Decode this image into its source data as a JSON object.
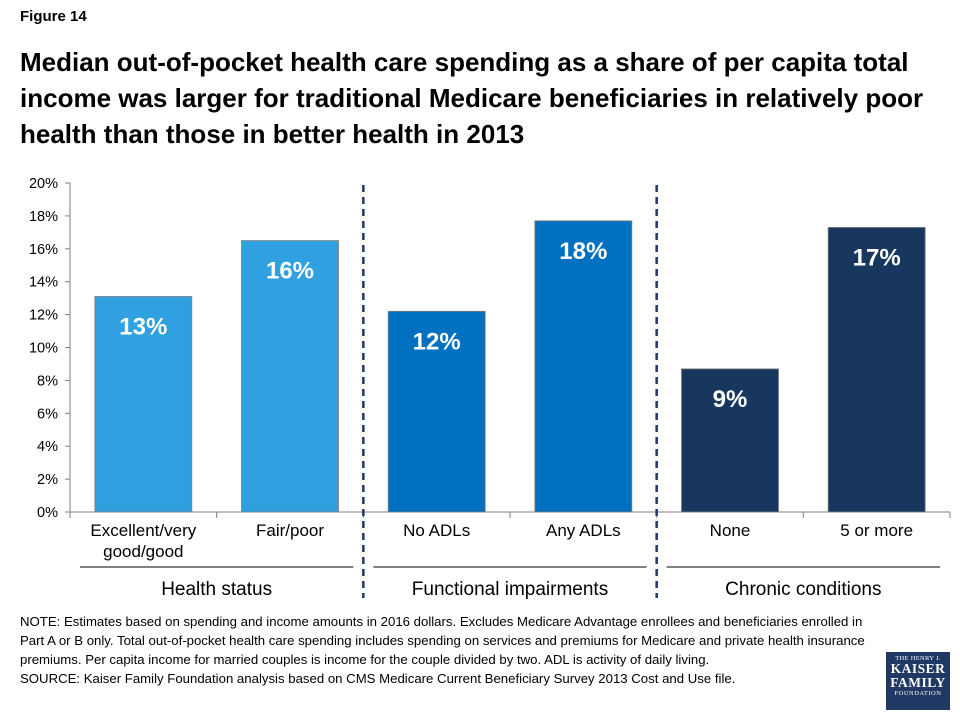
{
  "figure_label": "Figure 14",
  "title": "Median out-of-pocket health care spending as a share of per capita total income was larger for traditional Medicare beneficiaries in relatively poor health than those in better health in 2013",
  "chart_data": {
    "type": "bar",
    "ylim": [
      0,
      20
    ],
    "y_ticks": [
      "0%",
      "2%",
      "4%",
      "6%",
      "8%",
      "10%",
      "12%",
      "14%",
      "16%",
      "18%",
      "20%"
    ],
    "categories": [
      "Excellent/very good/good",
      "Fair/poor",
      "No ADLs",
      "Any ADLs",
      "None",
      "5 or more"
    ],
    "category_lines": [
      [
        "Excellent/very",
        "good/good"
      ],
      [
        "Fair/poor"
      ],
      [
        "No ADLs"
      ],
      [
        "Any ADLs"
      ],
      [
        "None"
      ],
      [
        "5 or more"
      ]
    ],
    "values": [
      13.1,
      16.5,
      12.2,
      17.7,
      8.7,
      17.3
    ],
    "data_labels": [
      "13%",
      "16%",
      "12%",
      "18%",
      "9%",
      "17%"
    ],
    "colors": [
      "#30a0e0",
      "#30a0e0",
      "#0070c0",
      "#0070c0",
      "#17375e",
      "#17375e"
    ],
    "groups": [
      {
        "label": "Health status",
        "categories": [
          0,
          1
        ]
      },
      {
        "label": "Functional impairments",
        "categories": [
          2,
          3
        ]
      },
      {
        "label": "Chronic conditions",
        "categories": [
          4,
          5
        ]
      }
    ],
    "grid": false,
    "legend": "none"
  },
  "note": "NOTE: Estimates based on spending and income amounts in 2016 dollars. Excludes Medicare Advantage enrollees and beneficiaries enrolled in Part A or B only. Total out-of-pocket health care spending includes spending on services and premiums for Medicare and private health insurance premiums. Per capita income for married couples is income for the couple divided by two. ADL is activity of daily living.",
  "source": "SOURCE: Kaiser Family Foundation analysis based on CMS Medicare Current Beneficiary Survey 2013 Cost and Use file.",
  "logo": {
    "top": "THE HENRY J.",
    "line1": "KAISER",
    "line2": "FAMILY",
    "bottom": "FOUNDATION"
  }
}
